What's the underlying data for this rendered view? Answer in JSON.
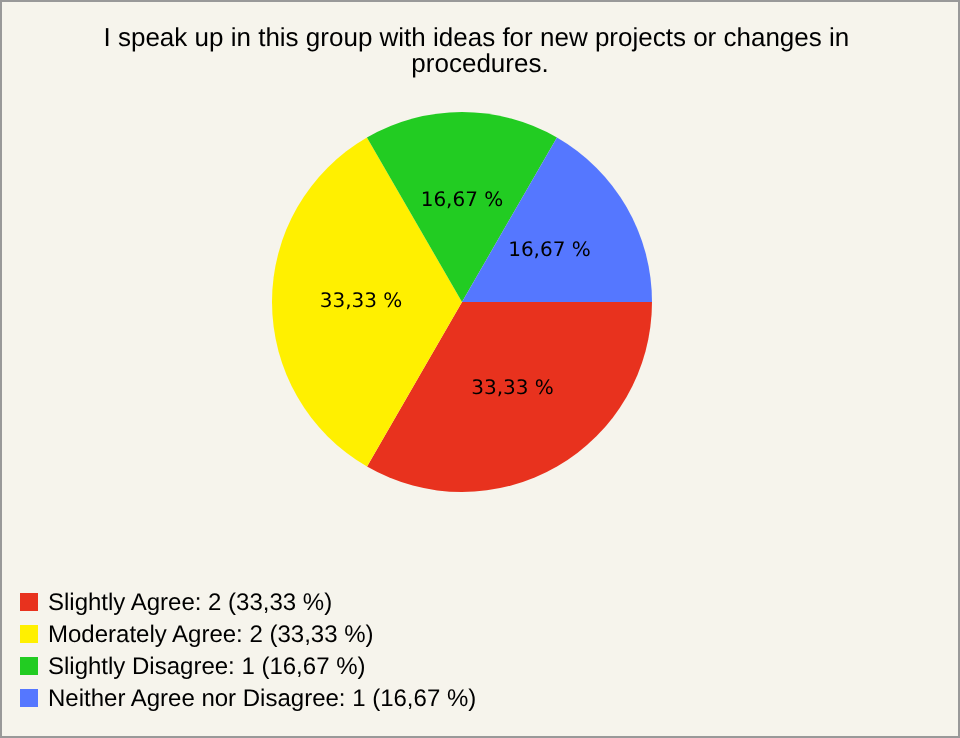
{
  "chart_data": {
    "type": "pie",
    "title": "I speak up in this group with ideas for new projects or changes in procedures.",
    "categories": [
      "Slightly Agree: 2 (33,33 %)",
      "Moderately Agree: 2 (33,33 %)",
      "Slightly Disagree: 1 (16,67 %)",
      "Neither Agree nor Disagree: 1 (16,67 %)"
    ],
    "values": [
      33.33,
      33.33,
      16.67,
      16.67
    ],
    "value_labels": [
      "33,33 %",
      "33,33 %",
      "16,67 %",
      "16,67 %"
    ],
    "colors": [
      "#e8321e",
      "#fff000",
      "#22cc22",
      "#5577ff"
    ],
    "legend": "bottom left"
  }
}
